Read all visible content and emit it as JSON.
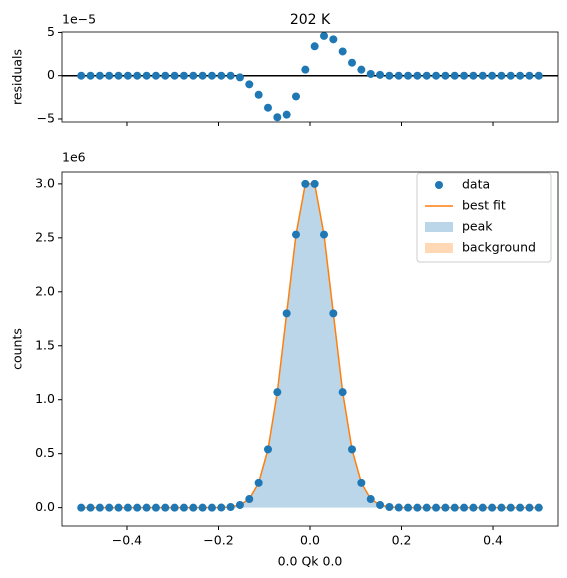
{
  "chart_data": [
    {
      "type": "residual",
      "title": "202 K",
      "ylabel": "residuals",
      "offset_label": "1e−5",
      "x": [
        -0.5,
        -0.4796,
        -0.4592,
        -0.4388,
        -0.4184,
        -0.398,
        -0.3776,
        -0.3571,
        -0.3367,
        -0.3163,
        -0.2959,
        -0.2755,
        -0.2551,
        -0.2347,
        -0.2143,
        -0.1939,
        -0.1735,
        -0.1531,
        -0.1327,
        -0.1122,
        -0.0918,
        -0.0714,
        -0.051,
        -0.0306,
        -0.0102,
        0.0102,
        0.0306,
        0.051,
        0.0714,
        0.0918,
        0.1122,
        0.1327,
        0.1531,
        0.1735,
        0.1939,
        0.2143,
        0.2347,
        0.2551,
        0.2755,
        0.2959,
        0.3163,
        0.3367,
        0.3571,
        0.3776,
        0.398,
        0.4184,
        0.4388,
        0.4592,
        0.4796,
        0.5
      ],
      "series": [
        {
          "color": "#1f77b4",
          "values": [
            0,
            0,
            0,
            0,
            0,
            0,
            0,
            0,
            0,
            0,
            0,
            0,
            0,
            0,
            0,
            0,
            0,
            -0.2,
            -1.0,
            -2.2,
            -3.7,
            -4.8,
            -4.5,
            -2.4,
            0.7,
            3.4,
            4.6,
            4.2,
            2.8,
            1.5,
            0.7,
            0.2,
            0.1,
            0,
            0,
            0,
            0,
            0,
            0,
            0,
            0,
            0,
            0,
            0,
            0,
            0,
            0,
            0,
            0,
            0
          ]
        }
      ],
      "hline": 0,
      "hline_color": "#000000",
      "xlim": [
        -0.542,
        0.542
      ],
      "ylim": [
        -5.35,
        5.05
      ],
      "yticks": [
        {
          "value": -5,
          "label": "−5"
        },
        0,
        5
      ]
    },
    {
      "type": "fit",
      "xlabel": "0.0 Qk 0.0",
      "ylabel": "counts",
      "offset_label": "1e6",
      "legend": "upper right",
      "x": [
        -0.5,
        -0.4796,
        -0.4592,
        -0.4388,
        -0.4184,
        -0.398,
        -0.3776,
        -0.3571,
        -0.3367,
        -0.3163,
        -0.2959,
        -0.2755,
        -0.2551,
        -0.2347,
        -0.2143,
        -0.1939,
        -0.1735,
        -0.1531,
        -0.1327,
        -0.1122,
        -0.0918,
        -0.0714,
        -0.051,
        -0.0306,
        -0.0102,
        0.0102,
        0.0306,
        0.051,
        0.0714,
        0.0918,
        0.1122,
        0.1327,
        0.1531,
        0.1735,
        0.1939,
        0.2143,
        0.2347,
        0.2551,
        0.2755,
        0.2959,
        0.3163,
        0.3367,
        0.3571,
        0.3776,
        0.398,
        0.4184,
        0.4388,
        0.4592,
        0.4796,
        0.5
      ],
      "series": [
        {
          "name": "data",
          "kind": "scatter",
          "color": "#1f77b4",
          "values": [
            0,
            0,
            0,
            0,
            0,
            0,
            0,
            0,
            0,
            0,
            0,
            0,
            0,
            0,
            0,
            0.001,
            0.006,
            0.025,
            0.08,
            0.23,
            0.54,
            1.07,
            1.8,
            2.53,
            3.0,
            3.0,
            2.53,
            1.8,
            1.07,
            0.54,
            0.23,
            0.08,
            0.025,
            0.006,
            0.001,
            0,
            0,
            0,
            0,
            0,
            0,
            0,
            0,
            0,
            0,
            0,
            0,
            0,
            0,
            0
          ]
        },
        {
          "name": "best fit",
          "kind": "line",
          "color": "#ff7f0e",
          "values": [
            0,
            0,
            0,
            0,
            0,
            0,
            0,
            0,
            0,
            0,
            0,
            0,
            0,
            0,
            0,
            0.001,
            0.006,
            0.025,
            0.08,
            0.23,
            0.54,
            1.07,
            1.8,
            2.53,
            3.0,
            3.0,
            2.53,
            1.8,
            1.07,
            0.54,
            0.23,
            0.08,
            0.025,
            0.006,
            0.001,
            0,
            0,
            0,
            0,
            0,
            0,
            0,
            0,
            0,
            0,
            0,
            0,
            0,
            0,
            0
          ]
        },
        {
          "name": "peak",
          "kind": "area",
          "color": "#1f77b4",
          "values": [
            0,
            0,
            0,
            0,
            0,
            0,
            0,
            0,
            0,
            0,
            0,
            0,
            0,
            0,
            0,
            0.001,
            0.006,
            0.025,
            0.08,
            0.23,
            0.54,
            1.07,
            1.8,
            2.53,
            3.0,
            3.0,
            2.53,
            1.8,
            1.07,
            0.54,
            0.23,
            0.08,
            0.025,
            0.006,
            0.001,
            0,
            0,
            0,
            0,
            0,
            0,
            0,
            0,
            0,
            0,
            0,
            0,
            0,
            0,
            0
          ]
        },
        {
          "name": "background",
          "kind": "area",
          "color": "#ff7f0e",
          "values": [
            0,
            0,
            0,
            0,
            0,
            0,
            0,
            0,
            0,
            0,
            0,
            0,
            0,
            0,
            0,
            0,
            0,
            0,
            0,
            0,
            0,
            0,
            0,
            0,
            0,
            0,
            0,
            0,
            0,
            0,
            0,
            0,
            0,
            0,
            0,
            0,
            0,
            0,
            0,
            0,
            0,
            0,
            0,
            0,
            0,
            0,
            0,
            0,
            0,
            0
          ]
        }
      ],
      "xlim": [
        -0.542,
        0.542
      ],
      "ylim": [
        -0.17,
        3.11
      ],
      "xticks": [
        {
          "value": -0.4,
          "label": "−0.4"
        },
        {
          "value": -0.2,
          "label": "−0.2"
        },
        {
          "value": 0,
          "label": "0.0"
        },
        0.2,
        0.4
      ],
      "yticks": [
        {
          "value": 0,
          "label": "0.0"
        },
        0.5,
        {
          "value": 1,
          "label": "1.0"
        },
        1.5,
        {
          "value": 2,
          "label": "2.0"
        },
        2.5,
        {
          "value": 3,
          "label": "3.0"
        }
      ]
    }
  ]
}
